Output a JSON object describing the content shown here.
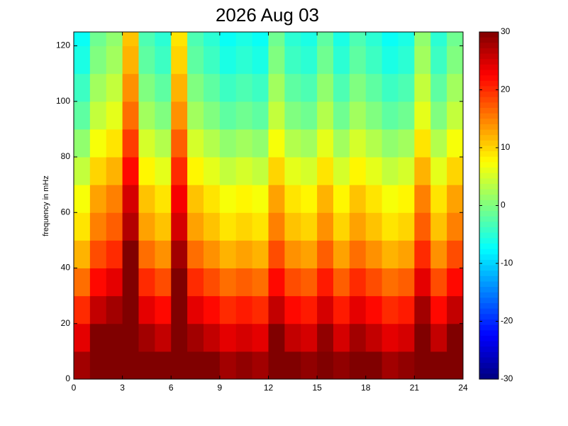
{
  "chart_data": {
    "type": "heatmap",
    "title": "2026 Aug 03",
    "ylabel": "frequency in mHz",
    "colormap": "jet",
    "x": [
      0,
      1,
      2,
      3,
      4,
      5,
      6,
      7,
      8,
      9,
      10,
      11,
      12,
      13,
      14,
      15,
      16,
      17,
      18,
      19,
      20,
      21,
      22,
      23,
      24
    ],
    "y": [
      0,
      10,
      20,
      30,
      40,
      50,
      60,
      70,
      80,
      90,
      100,
      110,
      120,
      125
    ],
    "z": [
      [
        28,
        30,
        30,
        30,
        30,
        30,
        30,
        30,
        30,
        28,
        29,
        28,
        30,
        30,
        29,
        30,
        29,
        30,
        30,
        28,
        29,
        30,
        30,
        30
      ],
      [
        24,
        30,
        30,
        30,
        28,
        26,
        30,
        28,
        26,
        24,
        25,
        24,
        30,
        26,
        25,
        29,
        25,
        28,
        26,
        24,
        25,
        30,
        26,
        30
      ],
      [
        20,
        26,
        28,
        30,
        24,
        22,
        30,
        24,
        22,
        20,
        21,
        20,
        26,
        22,
        21,
        25,
        21,
        24,
        22,
        20,
        21,
        28,
        22,
        26
      ],
      [
        16,
        22,
        24,
        30,
        20,
        18,
        30,
        20,
        18,
        16,
        17,
        16,
        22,
        18,
        17,
        21,
        17,
        20,
        18,
        16,
        17,
        24,
        18,
        22
      ],
      [
        12,
        18,
        20,
        30,
        16,
        14,
        28,
        16,
        14,
        12,
        13,
        12,
        18,
        14,
        13,
        17,
        13,
        16,
        14,
        12,
        13,
        20,
        14,
        18
      ],
      [
        9,
        15,
        17,
        27,
        13,
        11,
        25,
        13,
        11,
        9,
        10,
        9,
        15,
        11,
        10,
        14,
        10,
        13,
        11,
        9,
        10,
        17,
        11,
        15
      ],
      [
        7,
        13,
        15,
        25,
        11,
        9,
        23,
        11,
        9,
        7,
        8,
        7,
        13,
        9,
        8,
        12,
        8,
        11,
        9,
        7,
        8,
        15,
        9,
        13
      ],
      [
        4,
        10,
        12,
        22,
        8,
        6,
        20,
        8,
        6,
        4,
        5,
        4,
        10,
        6,
        5,
        9,
        5,
        8,
        6,
        4,
        5,
        12,
        6,
        10
      ],
      [
        1,
        7,
        9,
        19,
        5,
        3,
        17,
        5,
        3,
        1,
        2,
        1,
        7,
        3,
        2,
        6,
        2,
        5,
        3,
        1,
        2,
        9,
        3,
        7
      ],
      [
        -2,
        4,
        6,
        16,
        2,
        0,
        14,
        2,
        0,
        -2,
        -1,
        -2,
        4,
        0,
        -1,
        3,
        -1,
        2,
        0,
        -2,
        -1,
        6,
        0,
        4
      ],
      [
        -4,
        2,
        4,
        14,
        0,
        -2,
        12,
        0,
        -2,
        -4,
        -3,
        -4,
        2,
        -2,
        -3,
        1,
        -3,
        0,
        -2,
        -4,
        -3,
        4,
        -2,
        2
      ],
      [
        -6,
        0,
        2,
        12,
        -2,
        -4,
        10,
        -2,
        -4,
        -6,
        -5,
        -6,
        0,
        -4,
        -5,
        -1,
        -5,
        -2,
        -4,
        -6,
        -5,
        2,
        -4,
        0
      ],
      [
        -7,
        -1,
        1,
        11,
        -3,
        -5,
        9,
        -3,
        -5,
        -7,
        -6,
        -7,
        -1,
        -5,
        -6,
        -2,
        -6,
        -3,
        -5,
        -7,
        -6,
        1,
        -5,
        -1
      ]
    ],
    "xlim": [
      0,
      24
    ],
    "ylim": [
      0,
      125
    ],
    "xticks": [
      0,
      3,
      6,
      9,
      12,
      15,
      18,
      21,
      24
    ],
    "yticks": [
      0,
      20,
      40,
      60,
      80,
      100,
      120
    ],
    "colorbar": {
      "lim": [
        -30,
        30
      ],
      "ticks": [
        -30,
        -20,
        -10,
        0,
        10,
        20,
        30
      ]
    }
  }
}
